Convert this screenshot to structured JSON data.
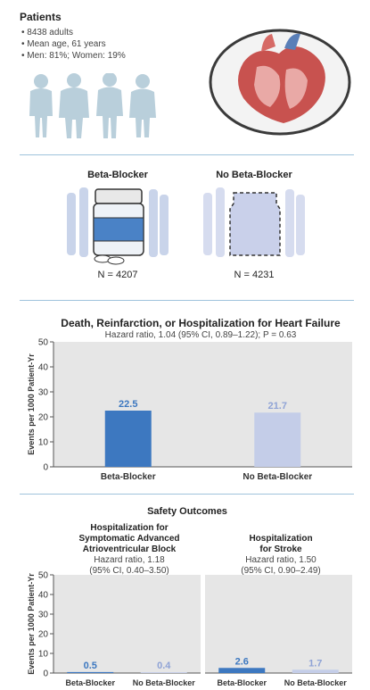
{
  "patients": {
    "title": "Patients",
    "bullets": [
      "8438 adults",
      "Mean age, 61 years",
      "Men: 81%; Women: 19%"
    ]
  },
  "arms": {
    "beta": {
      "label": "Beta-Blocker",
      "n": "N = 4207"
    },
    "nobeta": {
      "label": "No Beta-Blocker",
      "n": "N = 4231"
    }
  },
  "colors": {
    "beta": "#3d78c0",
    "nobeta": "#c4cde8",
    "plot_bg": "#e6e6e6",
    "rule": "#9fc3dc"
  },
  "main_chart": {
    "title": "Death, Reinfarction, or Hospitalization for Heart Failure",
    "subtitle": "Hazard ratio, 1.04 (95% CI, 0.89–1.22); P = 0.63"
  },
  "safety": {
    "title": "Safety Outcomes",
    "left": {
      "title_lines": [
        "Hospitalization for",
        "Symptomatic Advanced",
        "Atrioventricular Block"
      ],
      "stat_lines": [
        "Hazard ratio, 1.18",
        "(95% CI, 0.40–3.50)"
      ]
    },
    "right": {
      "title_lines": [
        "Hospitalization",
        "for Stroke"
      ],
      "stat_lines": [
        "Hazard ratio, 1.50",
        "(95% CI, 0.90–2.49)"
      ]
    }
  },
  "chart_data": [
    {
      "type": "bar",
      "title": "Death, Reinfarction, or Hospitalization for Heart Failure",
      "categories": [
        "Beta-Blocker",
        "No Beta-Blocker"
      ],
      "values": [
        22.5,
        21.7
      ],
      "ylabel": "Events per 1000 Patient-Yr",
      "ylim": [
        0,
        50
      ],
      "yticks": [
        0,
        10,
        20,
        30,
        40,
        50
      ],
      "grid": false
    },
    {
      "type": "bar",
      "title": "Hospitalization for Symptomatic Advanced Atrioventricular Block",
      "categories": [
        "Beta-Blocker",
        "No Beta-Blocker"
      ],
      "values": [
        0.5,
        0.4
      ],
      "ylabel": "Events per 1000 Patient-Yr",
      "ylim": [
        0,
        50
      ],
      "yticks": [
        0,
        10,
        20,
        30,
        40,
        50
      ],
      "grid": false
    },
    {
      "type": "bar",
      "title": "Hospitalization for Stroke",
      "categories": [
        "Beta-Blocker",
        "No Beta-Blocker"
      ],
      "values": [
        2.6,
        1.7
      ],
      "ylabel": "",
      "ylim": [
        0,
        50
      ],
      "grid": false
    }
  ]
}
